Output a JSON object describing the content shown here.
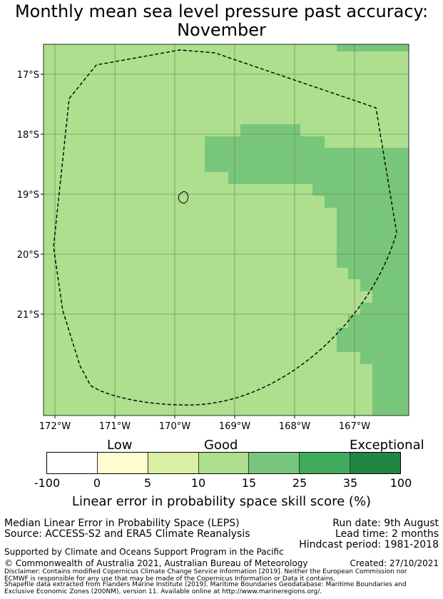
{
  "title": {
    "line1": "Monthly mean sea level pressure past accuracy:",
    "line2": "November"
  },
  "map": {
    "lat_labels": [
      "17°S",
      "18°S",
      "19°S",
      "20°S",
      "21°S"
    ],
    "lon_labels": [
      "172°W",
      "171°W",
      "170°W",
      "169°W",
      "168°W",
      "167°W"
    ],
    "colors": {
      "good": "#addf8e",
      "good_plus": "#78c67c",
      "eez_line": "#000000",
      "grid": "#5a7f4a"
    }
  },
  "colorbar": {
    "category_labels": [
      "Low",
      "Good",
      "Exceptional"
    ],
    "ticks": [
      "-100",
      "0",
      "5",
      "10",
      "15",
      "25",
      "35",
      "100"
    ],
    "colors": [
      "#ffffff",
      "#fffdd0",
      "#d9efa3",
      "#addf8e",
      "#78c67c",
      "#40ab5d",
      "#238443"
    ],
    "title": "Linear error in probability space skill score (%)"
  },
  "info": {
    "method": "Median Linear Error in Probability Space (LEPS)",
    "source": "Source: ACCESS-S2 and ERA5 Climate Reanalysis",
    "run_date": "Run date: 9th August",
    "lead_time": "Lead time: 2 months",
    "hindcast": "Hindcast period: 1981-2018",
    "supported": "Supported by Climate and Oceans Support Program in the Pacific",
    "copyright": "© Commonwealth of Australia 2021, Australian Bureau of Meteorology",
    "created": "Created: 27/10/2021",
    "disclaimer1": "Disclaimer: Contains modified Copernicus Climate Change Service Information [2019]. Neither the European Commission nor",
    "disclaimer2": "ECMWF is responsible for any use that may be made of the Copernicus Information or Data it contains.",
    "shapefile1": "Shapefile data extracted from Flanders Marine Institute (2019). Maritime Boundaries Geodatabase: Maritime Boundaries and",
    "shapefile2": "Exclusive Economic Zones (200NM), version 11. Available online at http://www.marineregions.org/."
  }
}
